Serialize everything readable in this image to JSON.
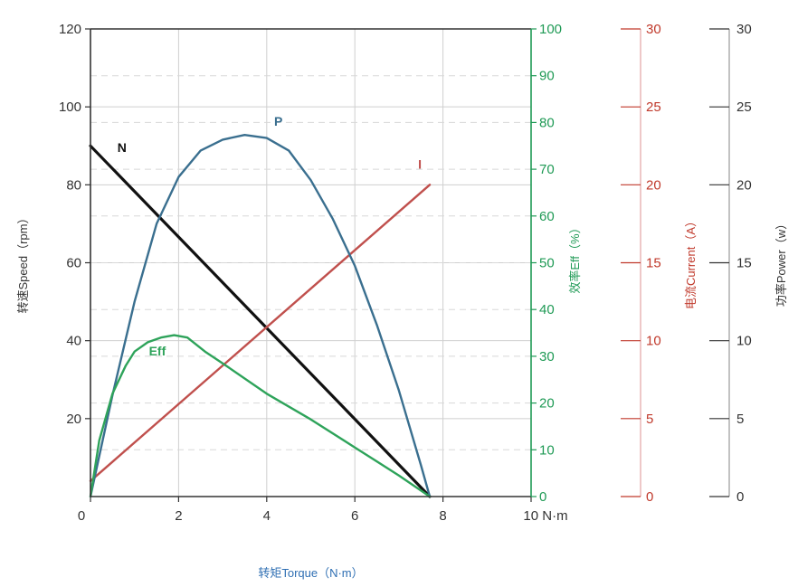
{
  "chart_data": {
    "type": "line",
    "title": "",
    "xlabel": "转矩Torque（N·m）",
    "x_unit": "N·m",
    "xlim": [
      0,
      10
    ],
    "x_ticks": [
      0,
      2,
      4,
      6,
      8,
      10
    ],
    "grid": true,
    "axes": {
      "speed": {
        "label": "转速Speed（rpm）",
        "range": [
          0,
          120
        ],
        "ticks": [
          20,
          40,
          60,
          80,
          100,
          120
        ],
        "color": "#333333"
      },
      "eff": {
        "label": "效率Eff（%）",
        "range": [
          0,
          100
        ],
        "ticks": [
          0,
          10,
          20,
          30,
          40,
          50,
          60,
          70,
          80,
          90,
          100
        ],
        "color": "#1f9a55"
      },
      "current": {
        "label": "电流Current（A）",
        "range": [
          0,
          30
        ],
        "ticks": [
          0,
          5,
          10,
          15,
          20,
          25,
          30
        ],
        "color": "#c0392b"
      },
      "power": {
        "label": "功率Power（w）",
        "range": [
          0,
          30
        ],
        "ticks": [
          0,
          5,
          10,
          15,
          20,
          25,
          30
        ],
        "color": "#333333"
      }
    },
    "series": [
      {
        "name": "N",
        "axis": "speed",
        "color": "#111111",
        "x": [
          0,
          7.7
        ],
        "y": [
          90,
          0
        ]
      },
      {
        "name": "I",
        "axis": "current",
        "color": "#c0504d",
        "x": [
          0,
          7.7
        ],
        "y": [
          1,
          20
        ]
      },
      {
        "name": "P",
        "axis": "power",
        "color": "#3a6f8f",
        "x": [
          0,
          0.5,
          1,
          1.5,
          2,
          2.5,
          3,
          3.5,
          4,
          4.5,
          5,
          5.5,
          6,
          6.5,
          7,
          7.5,
          7.7
        ],
        "y": [
          0,
          6.5,
          12.5,
          17.5,
          20.5,
          22.2,
          22.9,
          23.2,
          23.0,
          22.2,
          20.3,
          17.8,
          14.8,
          11.0,
          6.8,
          2.0,
          0
        ]
      },
      {
        "name": "Eff",
        "axis": "eff",
        "color": "#2ea35a",
        "x": [
          0,
          0.2,
          0.5,
          0.8,
          1.0,
          1.3,
          1.6,
          1.9,
          2.2,
          2.6,
          3.0,
          4.0,
          5.0,
          6.0,
          7.0,
          7.7
        ],
        "y": [
          0,
          12,
          22,
          28,
          31,
          33,
          34,
          34.5,
          34,
          31,
          28.5,
          22,
          16.5,
          10.5,
          4.5,
          0
        ]
      }
    ]
  }
}
